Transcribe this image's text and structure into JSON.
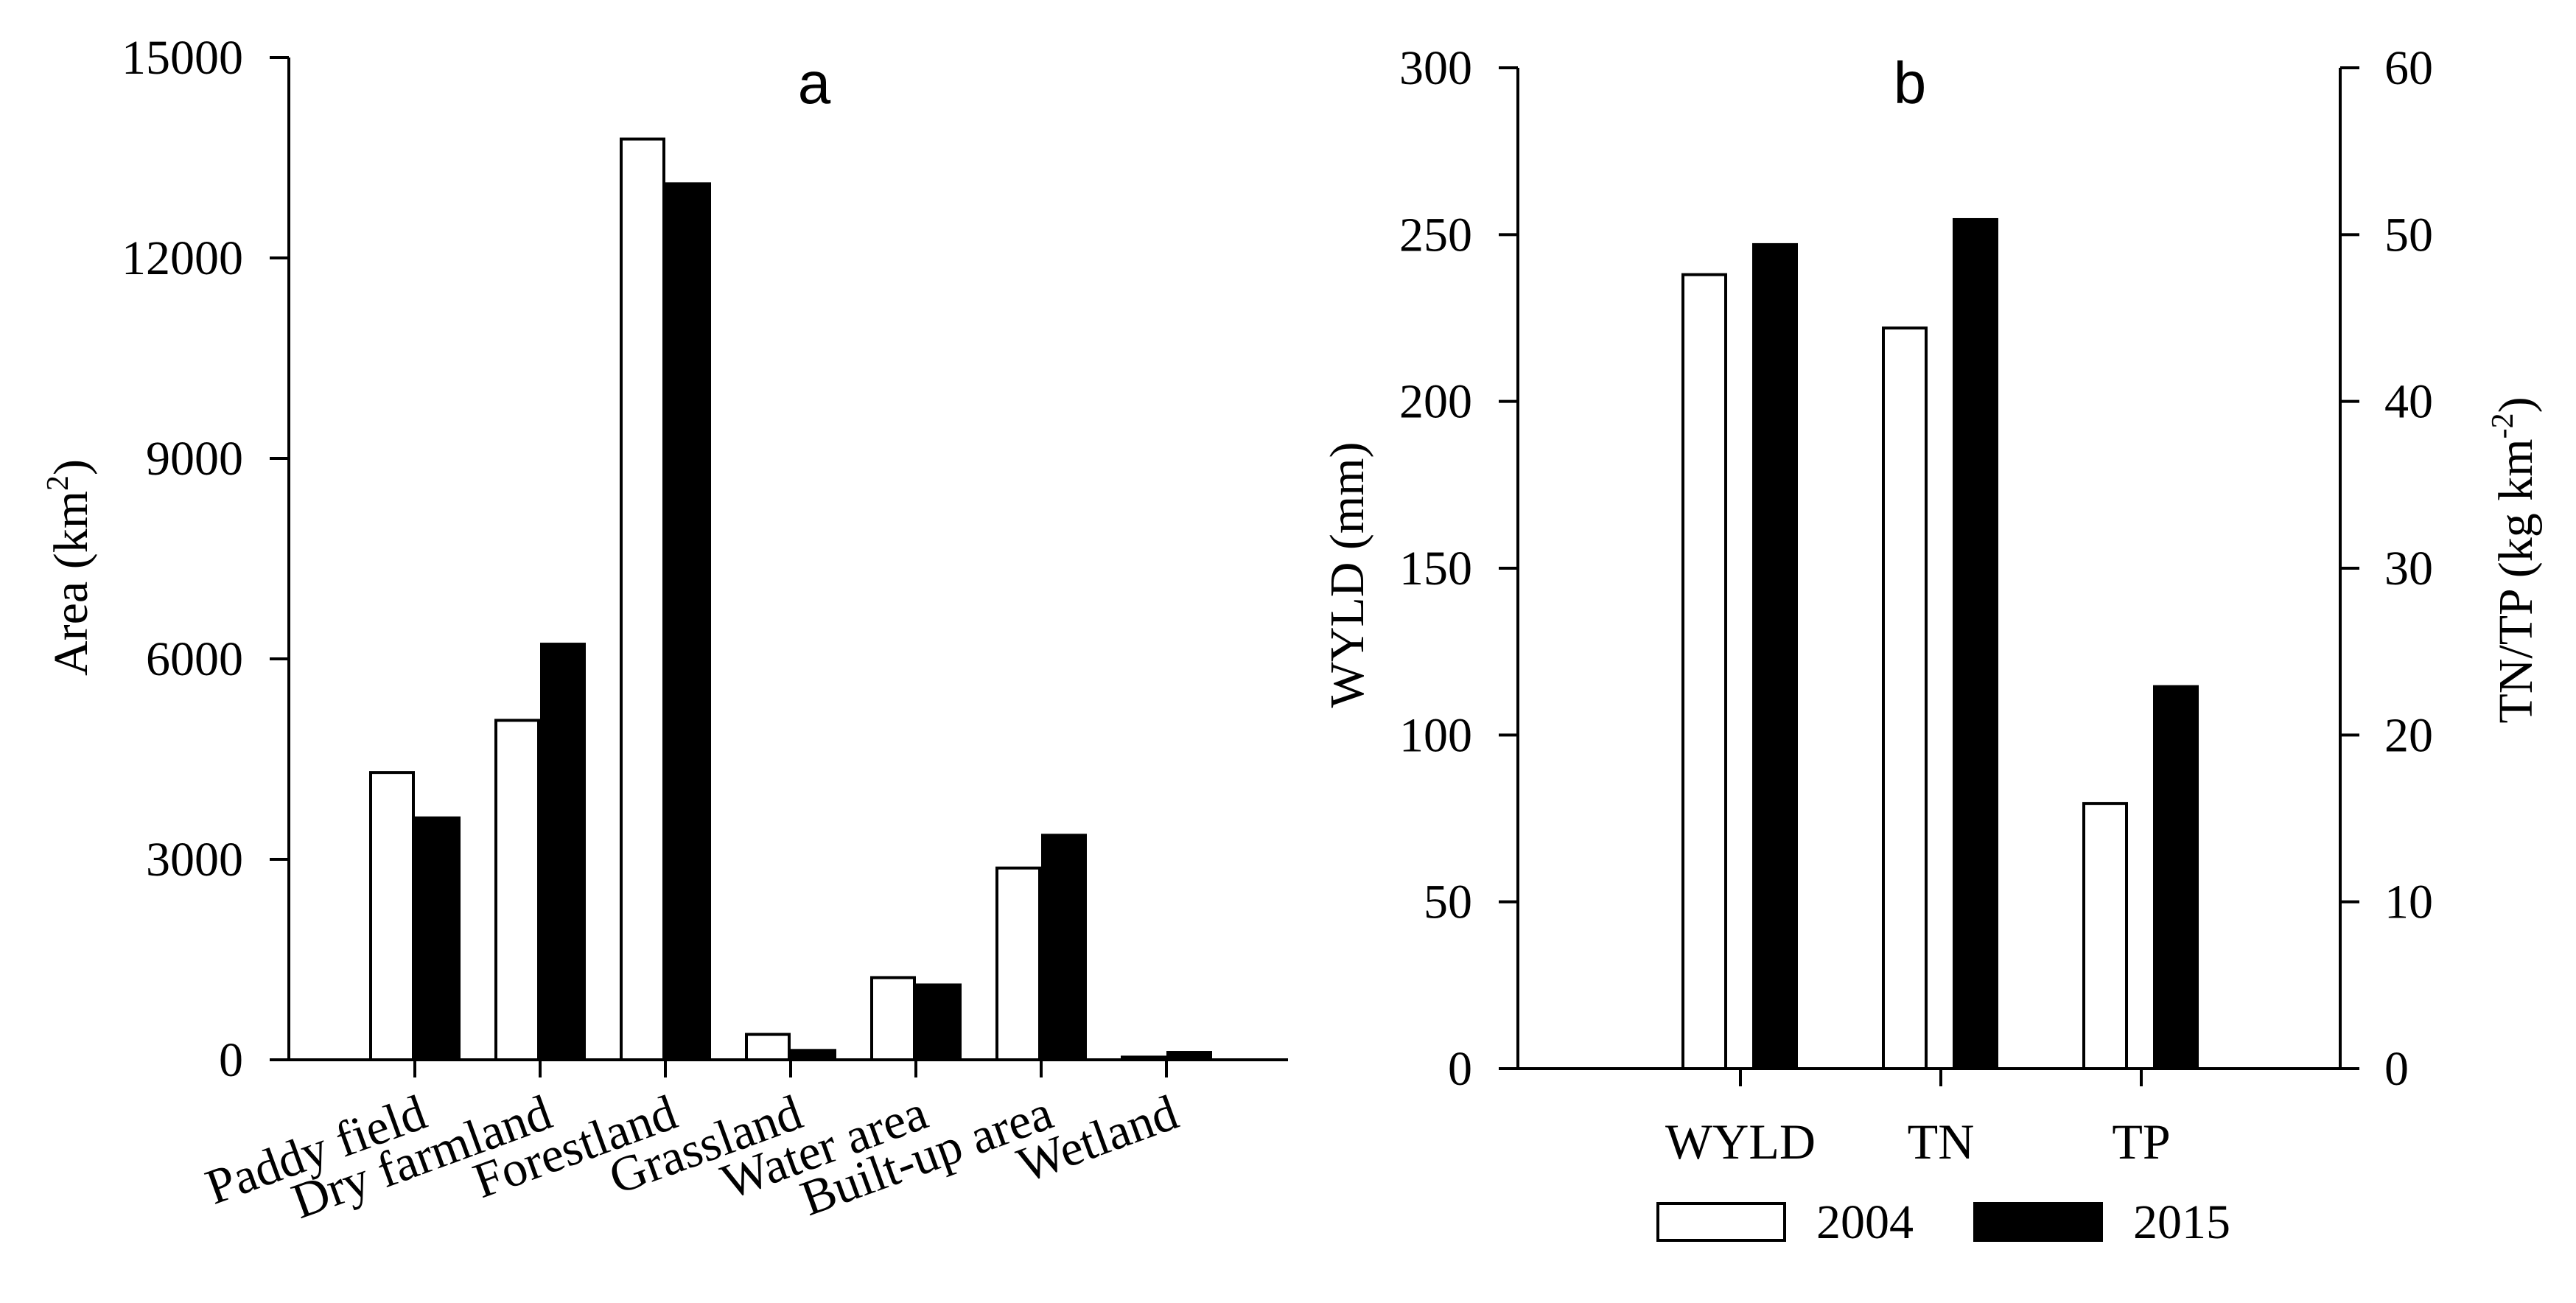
{
  "chart_data": [
    {
      "type": "bar",
      "panel_label": "a",
      "title": "",
      "ylabel": "Area (km",
      "ylabel_sup": "2",
      "ylabel_close": ")",
      "xlabel": "",
      "ylim": [
        0,
        15000
      ],
      "yticks": [
        0,
        3000,
        6000,
        9000,
        12000,
        15000
      ],
      "ytick_labels": [
        "0",
        "3000",
        "6000",
        "9000",
        "12000",
        "15000"
      ],
      "categories": [
        "Paddy field",
        "Dry farmland",
        "Forestland",
        "Grassland",
        "Water area",
        "Built-up area",
        "Wetland"
      ],
      "series": [
        {
          "name": "2004",
          "values": [
            4300,
            5080,
            13780,
            380,
            1230,
            2870,
            40
          ]
        },
        {
          "name": "2015",
          "values": [
            3620,
            6220,
            13110,
            140,
            1120,
            3360,
            110
          ]
        }
      ]
    },
    {
      "type": "bar",
      "panel_label": "b",
      "title": "",
      "ylabel": "WYLD (mm)",
      "y2label": "TN/TP (kg km",
      "y2label_sup": "-2",
      "y2label_close": ")",
      "xlabel": "",
      "ylim": [
        0,
        300
      ],
      "yticks": [
        0,
        50,
        100,
        150,
        200,
        250,
        300
      ],
      "ytick_labels": [
        "0",
        "50",
        "100",
        "150",
        "200",
        "250",
        "300"
      ],
      "y2lim": [
        0,
        60
      ],
      "y2ticks": [
        0,
        10,
        20,
        30,
        40,
        50,
        60
      ],
      "y2tick_labels": [
        "0",
        "10",
        "20",
        "30",
        "40",
        "50",
        "60"
      ],
      "categories": [
        "WYLD",
        "TN",
        "TP"
      ],
      "category_axis": [
        "left",
        "right",
        "right"
      ],
      "series": [
        {
          "name": "2004",
          "values": [
            238,
            44.4,
            15.9
          ]
        },
        {
          "name": "2015",
          "values": [
            247,
            50.9,
            22.9
          ]
        }
      ]
    }
  ],
  "legend": {
    "placement": "bottom",
    "items": [
      {
        "label": "2004",
        "color": "#ffffff"
      },
      {
        "label": "2015",
        "color": "#000000"
      }
    ]
  },
  "colors": {
    "bar_2004": "#ffffff",
    "bar_2015": "#000000",
    "axis": "#000000"
  }
}
